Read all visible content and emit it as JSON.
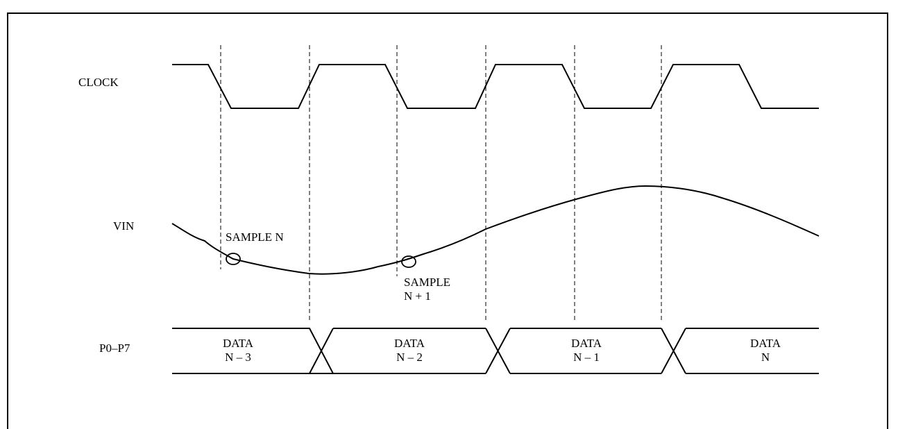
{
  "signals": {
    "clock": "CLOCK",
    "vin": "VIN",
    "bus": "P0–P7"
  },
  "samples": {
    "n": "SAMPLE N",
    "n1_line1": "SAMPLE",
    "n1_line2": "N + 1"
  },
  "data_cells": [
    {
      "line1": "DATA",
      "line2": "N – 3"
    },
    {
      "line1": "DATA",
      "line2": "N – 2"
    },
    {
      "line1": "DATA",
      "line2": "N – 1"
    },
    {
      "line1": "DATA",
      "line2": "N"
    }
  ]
}
